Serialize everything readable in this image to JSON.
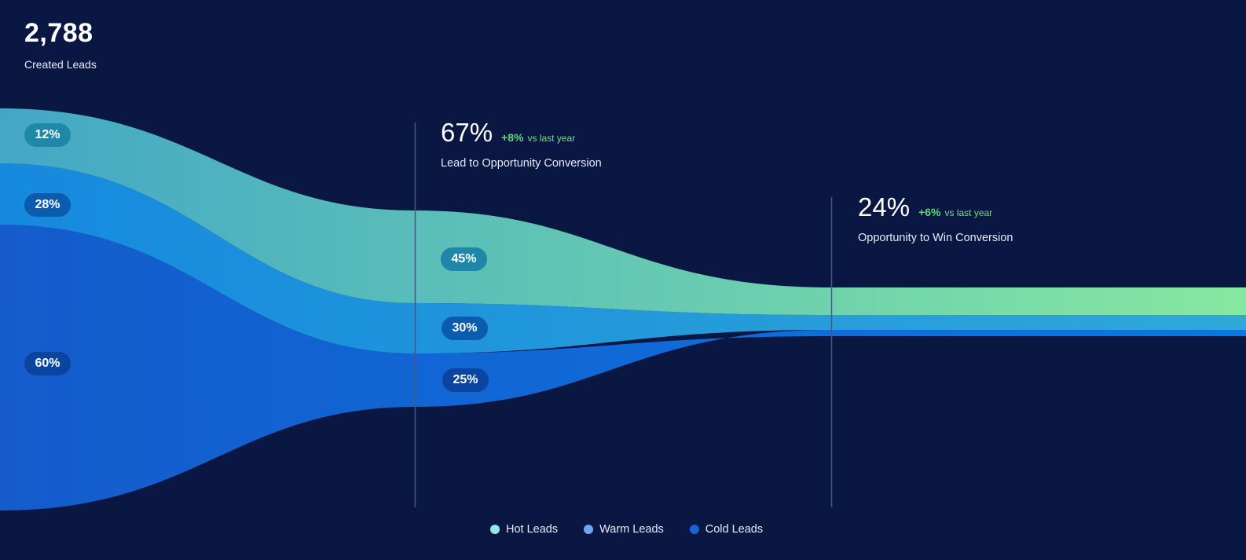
{
  "summary": {
    "value": "2,788",
    "label": "Created Leads"
  },
  "stages": [
    {
      "value": "67%",
      "delta": "+8%",
      "vs": "vs last year",
      "label": "Lead to Opportunity Conversion"
    },
    {
      "value": "24%",
      "delta": "+6%",
      "vs": "vs last year",
      "label": "Opportunity to Win Conversion"
    }
  ],
  "badges": {
    "created": {
      "hot": "12%",
      "warm": "28%",
      "cold": "60%"
    },
    "opportunity": {
      "hot": "45%",
      "warm": "30%",
      "cold": "25%"
    }
  },
  "legend": [
    {
      "label": "Hot Leads",
      "color": "#8fe8e6"
    },
    {
      "label": "Warm Leads",
      "color": "#6fa6ec"
    },
    {
      "label": "Cold Leads",
      "color": "#1763d6"
    }
  ],
  "colors": {
    "background": "#0a1742",
    "hot_start": "#43a7c6",
    "hot_end": "#86e8a0",
    "warm": "#1f8ee0",
    "cold": "#0b63d9",
    "positive_delta": "#5fd77a"
  },
  "chart_data": {
    "type": "area",
    "stages": [
      "Created Leads",
      "Lead to Opportunity Conversion",
      "Opportunity to Win Conversion"
    ],
    "series": [
      {
        "name": "Hot Leads",
        "values": [
          12,
          45,
          null
        ]
      },
      {
        "name": "Warm Leads",
        "values": [
          28,
          30,
          null
        ]
      },
      {
        "name": "Cold Leads",
        "values": [
          60,
          25,
          null
        ]
      }
    ],
    "totals": [
      "2,788",
      "67%",
      "24%"
    ]
  }
}
